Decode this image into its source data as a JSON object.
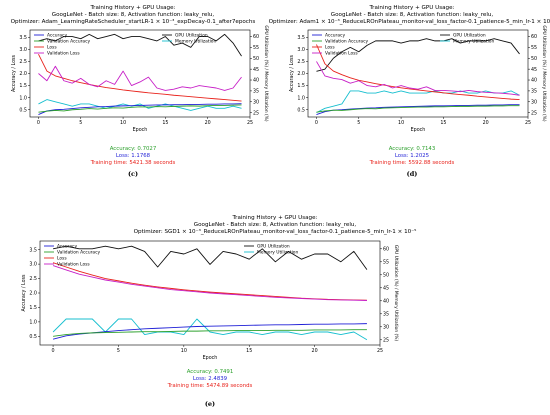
{
  "chart_data": [
    {
      "id": "c",
      "type": "line",
      "title_lines": [
        "Training History + GPU Usage:",
        "GoogLeNet - Batch size: 8, Activation function: leaky_relu,",
        "Optimizer: Adam_LearningRateScheduler_startLR-1 × 10⁻³_expDecay-0.1_after7epochs"
      ],
      "xlabel": "Epoch",
      "ylabel": "Accuracy / Loss",
      "y2label": "GPU Utilization (%) / Memory Utilization (%)",
      "xlim": [
        -1,
        25
      ],
      "ylim": [
        0.2,
        3.8
      ],
      "y2lim": [
        23,
        63
      ],
      "xticks": [
        0,
        5,
        10,
        15,
        20,
        25
      ],
      "yticks": [
        0.5,
        1.0,
        1.5,
        2.0,
        2.5,
        3.0,
        3.5
      ],
      "y2ticks": [
        25,
        30,
        35,
        40,
        45,
        50,
        55,
        60
      ],
      "legend_left": [
        "Accuracy",
        "Validation Accuracy",
        "Loss",
        "Validation Loss"
      ],
      "legend_right": [
        "GPU Utilization",
        "Memory Utilization"
      ],
      "x": [
        0,
        1,
        2,
        3,
        4,
        5,
        6,
        7,
        8,
        9,
        10,
        11,
        12,
        13,
        14,
        15,
        16,
        17,
        18,
        19,
        20,
        21,
        22,
        23,
        24
      ],
      "series": [
        {
          "name": "Accuracy",
          "axis": "left",
          "color": "#1f1fd6",
          "values": [
            0.3,
            0.45,
            0.5,
            0.52,
            0.55,
            0.58,
            0.6,
            0.62,
            0.63,
            0.65,
            0.66,
            0.67,
            0.68,
            0.69,
            0.7,
            0.7,
            0.71,
            0.71,
            0.72,
            0.72,
            0.73,
            0.73,
            0.74,
            0.74,
            0.75
          ]
        },
        {
          "name": "Validation Accuracy",
          "axis": "left",
          "color": "#2ca02c",
          "values": [
            0.4,
            0.44,
            0.47,
            0.45,
            0.5,
            0.52,
            0.55,
            0.53,
            0.56,
            0.58,
            0.57,
            0.6,
            0.62,
            0.61,
            0.63,
            0.62,
            0.64,
            0.65,
            0.66,
            0.65,
            0.67,
            0.68,
            0.68,
            0.69,
            0.7
          ]
        },
        {
          "name": "Loss",
          "axis": "left",
          "color": "#e8231c",
          "values": [
            2.8,
            2.1,
            1.9,
            1.8,
            1.7,
            1.62,
            1.55,
            1.48,
            1.42,
            1.37,
            1.32,
            1.28,
            1.24,
            1.2,
            1.17,
            1.14,
            1.1,
            1.07,
            1.04,
            1.01,
            0.98,
            0.95,
            0.92,
            0.89,
            0.86
          ]
        },
        {
          "name": "Validation Loss",
          "axis": "left",
          "color": "#c71fc7",
          "values": [
            2.0,
            1.7,
            2.3,
            1.7,
            1.6,
            1.8,
            1.55,
            1.45,
            1.7,
            1.55,
            2.1,
            1.5,
            1.65,
            1.85,
            1.4,
            1.3,
            1.35,
            1.45,
            1.4,
            1.5,
            1.45,
            1.4,
            1.3,
            1.4,
            1.85
          ]
        },
        {
          "name": "GPU Utilization",
          "axis": "right",
          "color": "#111111",
          "values": [
            58,
            59,
            58,
            60,
            60,
            59,
            61,
            59,
            60,
            61,
            59,
            60,
            60,
            59,
            58,
            60,
            56,
            57,
            55,
            60,
            60,
            58,
            61,
            57,
            51
          ]
        },
        {
          "name": "Memory Utilization",
          "axis": "right",
          "color": "#17bfcf",
          "values": [
            29,
            31,
            30,
            29,
            28,
            29,
            29,
            28,
            27,
            28,
            29,
            28,
            29,
            27,
            28,
            29,
            28,
            27,
            26,
            27,
            28,
            27,
            27,
            28,
            27
          ]
        }
      ],
      "stats": {
        "accuracy": "Accuracy: 0.7027",
        "loss": "Loss: 1.1768",
        "time": "Training time: 5421.38 seconds"
      },
      "caption": "(c)"
    },
    {
      "id": "d",
      "type": "line",
      "title_lines": [
        "Training History + GPU Usage:",
        "GoogLeNet - Batch size: 8, Activation function: leaky_relu,",
        "Optimizer: Adam1 × 10⁻³_ReduceLROnPlateau_monitor-val_loss_factor-0.1_patience-5_min_lr-1 × 10⁻⁵"
      ],
      "xlabel": "Epoch",
      "ylabel": "Accuracy / Loss",
      "y2label": "GPU Utilization (%) / Memory Utilization (%)",
      "xlim": [
        -1,
        25
      ],
      "ylim": [
        0.2,
        3.8
      ],
      "y2lim": [
        23,
        63
      ],
      "xticks": [
        0,
        5,
        10,
        15,
        20,
        25
      ],
      "yticks": [
        0.5,
        1.0,
        1.5,
        2.0,
        2.5,
        3.0,
        3.5
      ],
      "y2ticks": [
        25,
        30,
        35,
        40,
        45,
        50,
        55,
        60
      ],
      "legend_left": [
        "Accuracy",
        "Validation Accuracy",
        "Loss",
        "Validation Loss"
      ],
      "legend_right": [
        "GPU Utilization",
        "Memory Utilization"
      ],
      "x": [
        0,
        1,
        2,
        3,
        4,
        5,
        6,
        7,
        8,
        9,
        10,
        11,
        12,
        13,
        14,
        15,
        16,
        17,
        18,
        19,
        20,
        21,
        22,
        23,
        24
      ],
      "series": [
        {
          "name": "Accuracy",
          "axis": "left",
          "color": "#1f1fd6",
          "values": [
            0.3,
            0.42,
            0.48,
            0.5,
            0.53,
            0.55,
            0.57,
            0.58,
            0.6,
            0.61,
            0.62,
            0.63,
            0.64,
            0.65,
            0.66,
            0.66,
            0.67,
            0.68,
            0.68,
            0.69,
            0.69,
            0.7,
            0.7,
            0.71,
            0.71
          ]
        },
        {
          "name": "Validation Accuracy",
          "axis": "left",
          "color": "#2ca02c",
          "values": [
            0.4,
            0.45,
            0.48,
            0.47,
            0.5,
            0.53,
            0.55,
            0.54,
            0.57,
            0.58,
            0.59,
            0.6,
            0.61,
            0.61,
            0.62,
            0.62,
            0.63,
            0.64,
            0.64,
            0.65,
            0.65,
            0.66,
            0.66,
            0.67,
            0.67
          ]
        },
        {
          "name": "Loss",
          "axis": "left",
          "color": "#e8231c",
          "values": [
            3.2,
            2.4,
            2.1,
            1.95,
            1.82,
            1.72,
            1.65,
            1.58,
            1.52,
            1.46,
            1.41,
            1.36,
            1.32,
            1.28,
            1.24,
            1.2,
            1.16,
            1.13,
            1.1,
            1.06,
            1.03,
            1.0,
            0.97,
            0.94,
            0.92
          ]
        },
        {
          "name": "Validation Loss",
          "axis": "left",
          "color": "#c71fc7",
          "values": [
            2.5,
            1.9,
            1.8,
            1.75,
            1.6,
            1.7,
            1.5,
            1.45,
            1.55,
            1.4,
            1.5,
            1.4,
            1.35,
            1.45,
            1.3,
            1.3,
            1.28,
            1.25,
            1.3,
            1.25,
            1.22,
            1.2,
            1.18,
            1.15,
            1.1
          ]
        },
        {
          "name": "GPU Utilization",
          "axis": "right",
          "color": "#111111",
          "values": [
            44,
            45,
            50,
            53,
            55,
            53,
            56,
            58,
            58,
            58,
            57,
            58,
            58,
            59,
            58,
            58,
            59,
            57,
            58,
            58,
            58,
            59,
            58,
            57,
            52
          ]
        },
        {
          "name": "Memory Utilization",
          "axis": "right",
          "color": "#17bfcf",
          "values": [
            25,
            27,
            28,
            29,
            35,
            35,
            34,
            34,
            35,
            34,
            35,
            34,
            34,
            34,
            35,
            34,
            34,
            35,
            34,
            34,
            35,
            34,
            34,
            35,
            33
          ]
        }
      ],
      "stats": {
        "accuracy": "Accuracy: 0.7143",
        "loss": "Loss: 1.2025",
        "time": "Training time: 5592.88 seconds"
      },
      "caption": "(d)"
    },
    {
      "id": "e",
      "type": "line",
      "title_lines": [
        "Training History + GPU Usage:",
        "GoogLeNet - Batch size: 8, Activation function: leaky_relu,",
        "Optimizer: SGD1 × 10⁻³_ReduceLROnPlateau_monitor-val_loss_factor-0.1_patience-5_min_lr-1 × 10⁻⁵"
      ],
      "xlabel": "Epoch",
      "ylabel": "Accuracy / Loss",
      "y2label": "GPU Utilization (%) / Memory Utilization (%)",
      "xlim": [
        -1,
        25
      ],
      "ylim": [
        0.2,
        3.8
      ],
      "y2lim": [
        23,
        63
      ],
      "xticks": [
        0,
        5,
        10,
        15,
        20,
        25
      ],
      "yticks": [
        0.5,
        1.0,
        1.5,
        2.0,
        2.5,
        3.0,
        3.5
      ],
      "y2ticks": [
        25,
        30,
        35,
        40,
        45,
        50,
        55,
        60
      ],
      "legend_left": [
        "Accuracy",
        "Validation Accuracy",
        "Loss",
        "Validation Loss"
      ],
      "legend_right": [
        "GPU Utilization",
        "Memory Utilization"
      ],
      "x": [
        0,
        1,
        2,
        3,
        4,
        5,
        6,
        7,
        8,
        9,
        10,
        11,
        12,
        13,
        14,
        15,
        16,
        17,
        18,
        19,
        20,
        21,
        22,
        23,
        24
      ],
      "series": [
        {
          "name": "Accuracy",
          "axis": "left",
          "color": "#1f1fd6",
          "values": [
            0.4,
            0.52,
            0.58,
            0.62,
            0.66,
            0.7,
            0.73,
            0.76,
            0.78,
            0.8,
            0.82,
            0.84,
            0.85,
            0.86,
            0.87,
            0.88,
            0.89,
            0.9,
            0.9,
            0.91,
            0.92,
            0.92,
            0.93,
            0.93,
            0.94
          ]
        },
        {
          "name": "Validation Accuracy",
          "axis": "left",
          "color": "#2ca02c",
          "values": [
            0.5,
            0.56,
            0.6,
            0.62,
            0.63,
            0.64,
            0.65,
            0.66,
            0.66,
            0.67,
            0.68,
            0.68,
            0.69,
            0.69,
            0.7,
            0.7,
            0.7,
            0.71,
            0.71,
            0.71,
            0.72,
            0.72,
            0.72,
            0.73,
            0.73
          ]
        },
        {
          "name": "Loss",
          "axis": "left",
          "color": "#e8231c",
          "values": [
            3.05,
            2.9,
            2.75,
            2.62,
            2.5,
            2.42,
            2.34,
            2.27,
            2.21,
            2.16,
            2.11,
            2.07,
            2.03,
            2.0,
            1.97,
            1.94,
            1.91,
            1.88,
            1.85,
            1.82,
            1.8,
            1.78,
            1.77,
            1.76,
            1.75
          ]
        },
        {
          "name": "Validation Loss",
          "axis": "left",
          "color": "#c71fc7",
          "values": [
            2.95,
            2.8,
            2.65,
            2.55,
            2.45,
            2.38,
            2.3,
            2.24,
            2.18,
            2.12,
            2.08,
            2.04,
            2.0,
            1.97,
            1.94,
            1.91,
            1.88,
            1.85,
            1.83,
            1.81,
            1.79,
            1.77,
            1.76,
            1.75,
            1.74
          ]
        },
        {
          "name": "GPU Utilization",
          "axis": "right",
          "color": "#111111",
          "values": [
            60,
            61,
            60,
            60,
            61,
            60,
            61,
            59,
            53,
            59,
            58,
            60,
            54,
            59,
            58,
            56,
            60,
            55,
            59,
            56,
            58,
            58,
            55,
            59,
            52
          ]
        },
        {
          "name": "Memory Utilization",
          "axis": "right",
          "color": "#17bfcf",
          "values": [
            28,
            33,
            33,
            33,
            28,
            33,
            33,
            27,
            28,
            28,
            27,
            33,
            28,
            27,
            28,
            28,
            27,
            28,
            28,
            27,
            28,
            28,
            27,
            28,
            25
          ]
        }
      ],
      "stats": {
        "accuracy": "Accuracy: 0.7491",
        "loss": "Loss: 2.4839",
        "time": "Training time: 5474.89 seconds"
      },
      "caption": "(e)"
    }
  ]
}
